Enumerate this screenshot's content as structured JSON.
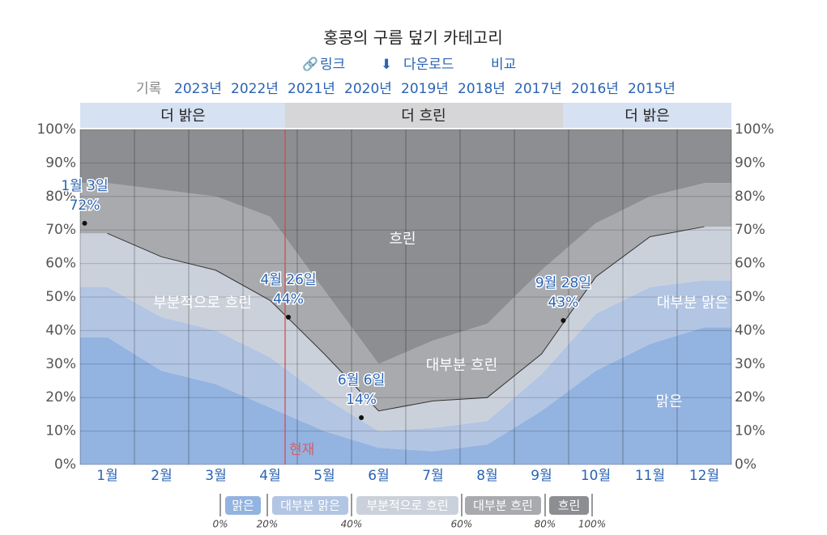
{
  "header": {
    "title": "홍콩의 구름 덮기 카테고리",
    "links": [
      "링크",
      "다운로드",
      "비교"
    ],
    "history_label": "기록",
    "years": [
      "2023년",
      "2022년",
      "2021년",
      "2020년",
      "2019년",
      "2018년",
      "2017년",
      "2016년",
      "2015년"
    ]
  },
  "chart_data": {
    "type": "stacked-area",
    "seasons": [
      "더 밝은",
      "더 흐린",
      "더 밝은"
    ],
    "now_label": "현재",
    "categories": [
      "1월",
      "2월",
      "3월",
      "4월",
      "5월",
      "6월",
      "7월",
      "8월",
      "9월",
      "10월",
      "11월",
      "12월"
    ],
    "series": [
      {
        "name": "맑은",
        "color": "#93b3e0",
        "values": [
          38,
          28,
          24,
          17,
          10,
          5,
          4,
          6,
          16,
          28,
          36,
          41
        ]
      },
      {
        "name": "대부분 맑은",
        "color": "#b2c5e3",
        "values": [
          15,
          16,
          16,
          15,
          10,
          5,
          7,
          7,
          11,
          17,
          17,
          14
        ]
      },
      {
        "name": "부분적으로 흐린",
        "color": "#cbd1db",
        "values": [
          16,
          18,
          18,
          17,
          13,
          6,
          8,
          7,
          6,
          11,
          15,
          16
        ]
      },
      {
        "name": "대부분 흐린",
        "color": "#a8aaae",
        "values": [
          15,
          20,
          22,
          25,
          19,
          14,
          18,
          22,
          25,
          16,
          12,
          13
        ]
      },
      {
        "name": "흐린",
        "color": "#8c8e92",
        "values": [
          16,
          18,
          20,
          26,
          48,
          70,
          63,
          58,
          42,
          28,
          20,
          16
        ]
      }
    ],
    "annotations": [
      {
        "label": "1월 3일",
        "value": 72,
        "value_label": "72%"
      },
      {
        "label": "4월 26일",
        "value": 44,
        "value_label": "44%"
      },
      {
        "label": "6월 6일",
        "value": 14,
        "value_label": "14%"
      },
      {
        "label": "9월 28일",
        "value": 43,
        "value_label": "43%"
      }
    ],
    "ylim": [
      0,
      100
    ],
    "yticks": [
      {
        "value": 0,
        "label": "0%"
      },
      {
        "value": 10,
        "label": "10%"
      },
      {
        "value": 20,
        "label": "20%"
      },
      {
        "value": 30,
        "label": "30%"
      },
      {
        "value": 40,
        "label": "40%"
      },
      {
        "value": 50,
        "label": "50%"
      },
      {
        "value": 60,
        "label": "60%"
      },
      {
        "value": 70,
        "label": "70%"
      },
      {
        "value": 80,
        "label": "80%"
      },
      {
        "value": 90,
        "label": "90%"
      },
      {
        "value": 100,
        "label": "100%"
      }
    ],
    "y2lim": [
      100,
      0
    ],
    "y2ticks": [
      {
        "value": 100,
        "label": "100%"
      },
      {
        "value": 90,
        "label": "90%"
      },
      {
        "value": 80,
        "label": "80%"
      },
      {
        "value": 70,
        "label": "70%"
      },
      {
        "value": 60,
        "label": "60%"
      },
      {
        "value": 50,
        "label": "50%"
      },
      {
        "value": 40,
        "label": "40%"
      },
      {
        "value": 30,
        "label": "30%"
      },
      {
        "value": 20,
        "label": "20%"
      },
      {
        "value": 10,
        "label": "10%"
      },
      {
        "value": 0,
        "label": "0%"
      }
    ],
    "legend_ticks": [
      {
        "value": 0,
        "label": "0%"
      },
      {
        "value": 20,
        "label": "20%"
      },
      {
        "value": 40,
        "label": "40%"
      },
      {
        "value": 60,
        "label": "60%"
      },
      {
        "value": 80,
        "label": "80%"
      },
      {
        "value": 100,
        "label": "100%"
      }
    ],
    "grid": true
  }
}
